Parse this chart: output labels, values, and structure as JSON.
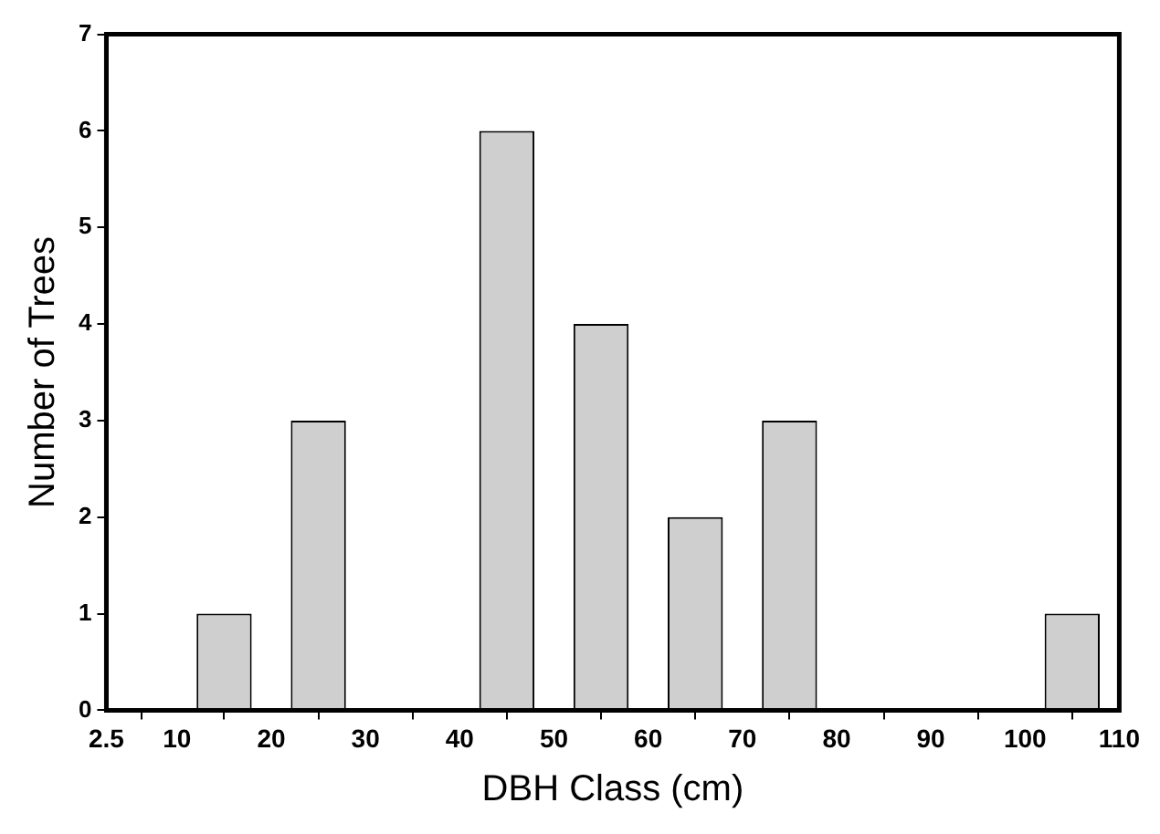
{
  "chart_data": {
    "type": "bar",
    "xlabel": "DBH Class (cm)",
    "ylabel": "Number of Trees",
    "x": [
      15,
      25,
      35,
      45,
      55,
      65,
      75,
      85,
      95,
      105
    ],
    "values": [
      1,
      3,
      0,
      6,
      4,
      2,
      3,
      0,
      0,
      1
    ],
    "color": "#cfcfcf",
    "xlim": [
      2.5,
      110
    ],
    "xticks": [
      2.5,
      10,
      20,
      30,
      40,
      50,
      60,
      70,
      80,
      90,
      100,
      110
    ],
    "ylim": [
      0,
      7
    ],
    "yticks": [
      0,
      1,
      2,
      3,
      4,
      5,
      6,
      7
    ],
    "grid": false,
    "legend": false
  }
}
